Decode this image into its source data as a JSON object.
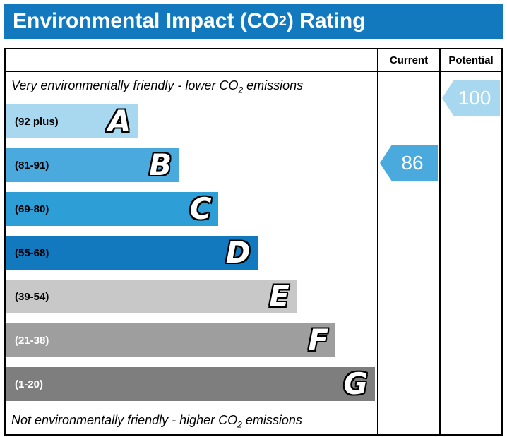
{
  "title": {
    "prefix": "Environmental Impact (CO",
    "subscript": "2",
    "suffix": ") Rating"
  },
  "columns": {
    "current": "Current",
    "potential": "Potential"
  },
  "notes": {
    "top": {
      "prefix": "Very environmentally friendly - lower CO",
      "subscript": "2",
      "suffix": " emissions"
    },
    "bottom": {
      "prefix": "Not environmentally friendly - higher CO",
      "subscript": "2",
      "suffix": " emissions"
    }
  },
  "bands": [
    {
      "letter": "A",
      "range": "(92 plus)",
      "color": "#a8d7f0",
      "range_color": "#000000",
      "width_pct": 35.6
    },
    {
      "letter": "B",
      "range": "(81-91)",
      "color": "#4aa9dd",
      "range_color": "#000000",
      "width_pct": 46.6
    },
    {
      "letter": "C",
      "range": "(69-80)",
      "color": "#2d9ed6",
      "range_color": "#000000",
      "width_pct": 57.3
    },
    {
      "letter": "D",
      "range": "(55-68)",
      "color": "#1279be",
      "range_color": "#000000",
      "width_pct": 67.8
    },
    {
      "letter": "E",
      "range": "(39-54)",
      "color": "#c8c8c8",
      "range_color": "#000000",
      "width_pct": 78.3
    },
    {
      "letter": "F",
      "range": "(21-38)",
      "color": "#9e9e9e",
      "range_color": "#ffffff",
      "width_pct": 88.8
    },
    {
      "letter": "G",
      "range": "(1-20)",
      "color": "#7e7e7e",
      "range_color": "#ffffff",
      "width_pct": 99.4
    }
  ],
  "current": {
    "value": "86",
    "band": "B",
    "color": "#4aa9dd"
  },
  "potential": {
    "value": "100",
    "band": "A",
    "color": "#a8d7f0"
  },
  "accent_color": "#1279be",
  "chart_data": {
    "type": "bar",
    "title": "Environmental Impact (CO2) Rating",
    "categories": [
      "A (92 plus)",
      "B (81-91)",
      "C (69-80)",
      "D (55-68)",
      "E (39-54)",
      "F (21-38)",
      "G (1-20)"
    ],
    "values": [
      35.6,
      46.6,
      57.3,
      67.8,
      78.3,
      88.8,
      99.4
    ],
    "xlabel": "",
    "ylabel": "",
    "legend": [
      "Current",
      "Potential"
    ],
    "current_rating": 86,
    "current_band": "B",
    "potential_rating": 100,
    "potential_band": "A",
    "annotations": [
      "Very environmentally friendly - lower CO2 emissions",
      "Not environmentally friendly - higher CO2 emissions"
    ]
  }
}
